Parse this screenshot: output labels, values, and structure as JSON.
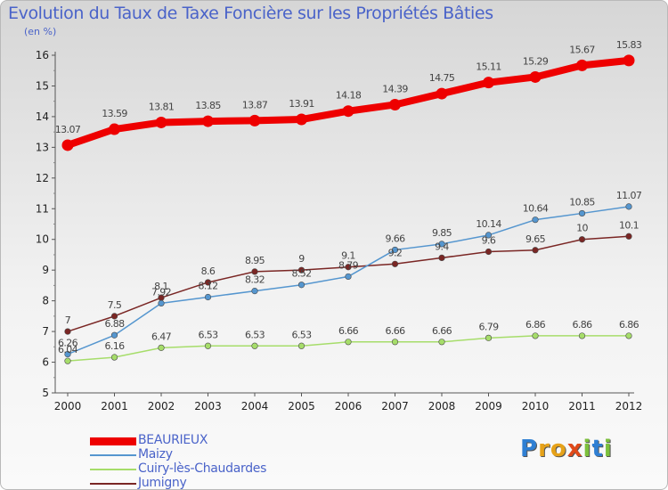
{
  "title": "Evolution du Taux de Taxe Foncière sur les Propriétés Bâties",
  "subtitle": "(en %)",
  "logo": {
    "text": "Proxiti",
    "letters": [
      "P",
      "r",
      "o",
      "x",
      "i",
      "t",
      "i"
    ],
    "colors": [
      "#2f7fd3",
      "#e6a21a",
      "#e6a21a",
      "#e04a1a",
      "#7cc03c",
      "#2f7fd3",
      "#7cc03c"
    ]
  },
  "chart_data": {
    "type": "line",
    "x": [
      "2000",
      "2001",
      "2002",
      "2003",
      "2004",
      "2005",
      "2006",
      "2007",
      "2008",
      "2009",
      "2010",
      "2011",
      "2012"
    ],
    "ylim": [
      5,
      16
    ],
    "yticks": [
      "5",
      "6",
      "7",
      "8",
      "9",
      "10",
      "11",
      "12",
      "13",
      "14",
      "15",
      "16"
    ],
    "grid": false,
    "legend_position": "bottom-left",
    "series": [
      {
        "name": "BEAURIEUX",
        "color": "#ee0000",
        "width": 8,
        "values": [
          13.07,
          13.59,
          13.81,
          13.85,
          13.87,
          13.91,
          14.18,
          14.39,
          14.75,
          15.11,
          15.29,
          15.67,
          15.83
        ],
        "labels": [
          "13.07",
          "13.59",
          "13.81",
          "13.85",
          "13.87",
          "13.91",
          "14.18",
          "14.39",
          "14.75",
          "15.11",
          "15.29",
          "15.67",
          "15.83"
        ]
      },
      {
        "name": "Maizy",
        "color": "#5596cf",
        "width": 1.5,
        "values": [
          6.26,
          6.88,
          7.92,
          8.12,
          8.32,
          8.52,
          8.79,
          9.66,
          9.85,
          10.14,
          10.64,
          10.85,
          11.07
        ],
        "labels": [
          "6.26",
          "6.88",
          "7.92",
          "8.12",
          "8.32",
          "8.52",
          "8.79",
          "9.66",
          "9.85",
          "10.14",
          "10.64",
          "10.85",
          "11.07"
        ]
      },
      {
        "name": "Cuiry-lès-Chaudardes",
        "color": "#a6dd6a",
        "width": 1.5,
        "values": [
          6.04,
          6.16,
          6.47,
          6.53,
          6.53,
          6.53,
          6.66,
          6.66,
          6.66,
          6.79,
          6.86,
          6.86,
          6.86
        ],
        "labels": [
          "6.04",
          "6.16",
          "6.47",
          "6.53",
          "6.53",
          "6.53",
          "6.66",
          "6.66",
          "6.66",
          "6.79",
          "6.86",
          "6.86",
          "6.86"
        ]
      },
      {
        "name": "Jumigny",
        "color": "#7a2624",
        "width": 1.5,
        "values": [
          7,
          7.5,
          8.1,
          8.6,
          8.95,
          9,
          9.1,
          9.2,
          9.4,
          9.6,
          9.65,
          10,
          10.1
        ],
        "labels": [
          "7",
          "7.5",
          "8.1",
          "8.6",
          "8.95",
          "9",
          "9.1",
          "9.2",
          "9.4",
          "9.6",
          "9.65",
          "10",
          "10.1"
        ]
      }
    ]
  }
}
